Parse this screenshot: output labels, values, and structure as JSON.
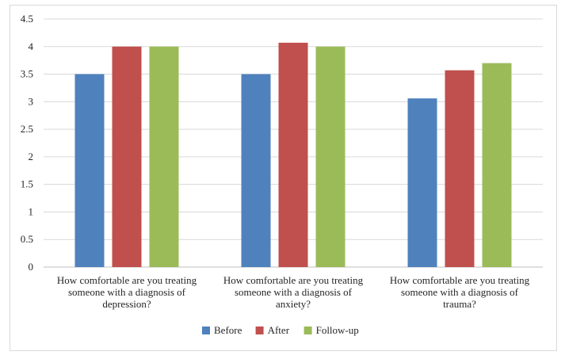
{
  "chart_data": {
    "type": "bar",
    "categories": [
      [
        "How comfortable are you treating",
        "someone with a diagnosis of",
        "depression?"
      ],
      [
        "How comfortable are you treating",
        "someone with a diagnosis of",
        "anxiety?"
      ],
      [
        "How comfortable are you treating",
        "someone with a diagnosis of",
        "trauma?"
      ]
    ],
    "series": [
      {
        "name": "Before",
        "color": "#4f81bd",
        "values": [
          3.5,
          3.5,
          3.06
        ]
      },
      {
        "name": "After",
        "color": "#c0504d",
        "values": [
          4.0,
          4.07,
          3.57
        ]
      },
      {
        "name": "Follow-up",
        "color": "#9bbb59",
        "values": [
          4.0,
          4.0,
          3.7
        ]
      }
    ],
    "ylim": [
      0,
      4.5
    ],
    "yticks": [
      "0",
      "0.5",
      "1",
      "1.5",
      "2",
      "2.5",
      "3",
      "3.5",
      "4",
      "4.5"
    ],
    "grid": true,
    "legend_position": "bottom"
  }
}
